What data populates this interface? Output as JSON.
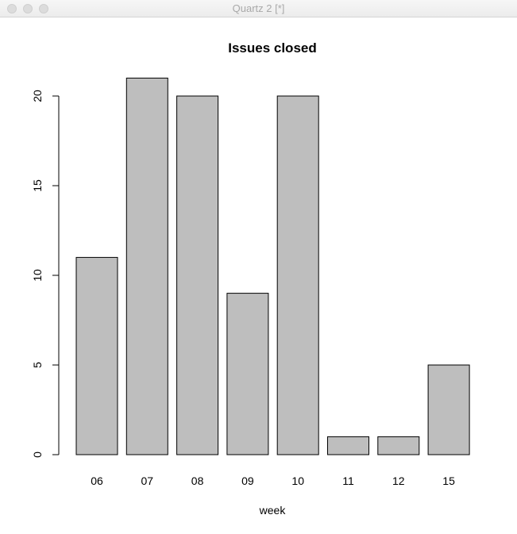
{
  "window": {
    "title": "Quartz 2 [*]"
  },
  "chart_data": {
    "type": "bar",
    "title": "Issues closed",
    "xlabel": "week",
    "ylabel": "",
    "categories": [
      "06",
      "07",
      "08",
      "09",
      "10",
      "11",
      "12",
      "15"
    ],
    "values": [
      11,
      21,
      20,
      9,
      20,
      1,
      1,
      5
    ],
    "ylim": [
      0,
      21
    ],
    "yticks": [
      0,
      5,
      10,
      15,
      20
    ],
    "bar_color": "#bebebe",
    "edge_color": "#000000",
    "grid": false
  }
}
